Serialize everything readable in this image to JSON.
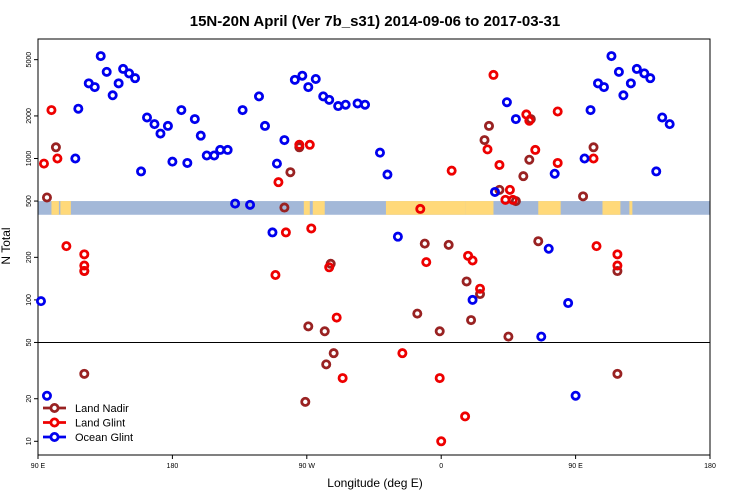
{
  "chart_data": {
    "type": "scatter",
    "title": "15N-20N April (Ver 7b_s31)   2014-09-06 to 2017-03-31",
    "xlabel": "Longitude (deg E)",
    "ylabel": "N Total",
    "y_scale": "log",
    "xlim": [
      90,
      540
    ],
    "ylim": [
      8,
      7000
    ],
    "x_ticks": [
      {
        "value": 90,
        "label": "90 E"
      },
      {
        "value": 180,
        "label": "180"
      },
      {
        "value": 270,
        "label": "90 W"
      },
      {
        "value": 360,
        "label": "0"
      },
      {
        "value": 450,
        "label": "90 E"
      },
      {
        "value": 540,
        "label": "180"
      }
    ],
    "y_ticks": [
      {
        "value": 10,
        "label": "10"
      },
      {
        "value": 20,
        "label": "20"
      },
      {
        "value": 50,
        "label": "50"
      },
      {
        "value": 100,
        "label": "100"
      },
      {
        "value": 200,
        "label": "200"
      },
      {
        "value": 500,
        "label": "500"
      },
      {
        "value": 1000,
        "label": "1000"
      },
      {
        "value": 2000,
        "label": "2000"
      },
      {
        "value": 5000,
        "label": "5000"
      }
    ],
    "reference_line_y": 50,
    "latitude_band": {
      "y_range": [
        400,
        500
      ],
      "ocean_color": "#a3b8d8",
      "land_color": "#ffd97a",
      "land_segments": [
        [
          99,
          104
        ],
        [
          105,
          112
        ],
        [
          268,
          272
        ],
        [
          274,
          282
        ],
        [
          323,
          376
        ],
        [
          376,
          395
        ],
        [
          425,
          440
        ],
        [
          468,
          480
        ],
        [
          486,
          488
        ]
      ]
    },
    "legend_position": "bottom-left",
    "series": [
      {
        "name": "Land Nadir",
        "color": "#992222",
        "points": [
          [
            96,
            530
          ],
          [
            102,
            1200
          ],
          [
            121,
            160
          ],
          [
            121,
            30
          ],
          [
            255,
            450
          ],
          [
            259,
            800
          ],
          [
            265,
            1200
          ],
          [
            269,
            19
          ],
          [
            271,
            65
          ],
          [
            282,
            60
          ],
          [
            283,
            35
          ],
          [
            286,
            180
          ],
          [
            288,
            42
          ],
          [
            344,
            80
          ],
          [
            349,
            250
          ],
          [
            359,
            60
          ],
          [
            365,
            245
          ],
          [
            377,
            135
          ],
          [
            380,
            72
          ],
          [
            386,
            110
          ],
          [
            389,
            1350
          ],
          [
            392,
            1700
          ],
          [
            399,
            600
          ],
          [
            405,
            55
          ],
          [
            410,
            500
          ],
          [
            415,
            750
          ],
          [
            419,
            980
          ],
          [
            420,
            1900
          ],
          [
            425,
            260
          ],
          [
            455,
            540
          ],
          [
            462,
            1200
          ],
          [
            478,
            160
          ],
          [
            478,
            30
          ]
        ]
      },
      {
        "name": "Land Glint",
        "color": "#ee0000",
        "points": [
          [
            94,
            920
          ],
          [
            99,
            2200
          ],
          [
            103,
            1000
          ],
          [
            109,
            240
          ],
          [
            121,
            210
          ],
          [
            121,
            175
          ],
          [
            121,
            160
          ],
          [
            249,
            150
          ],
          [
            251,
            680
          ],
          [
            256,
            300
          ],
          [
            265,
            1250
          ],
          [
            272,
            1250
          ],
          [
            273,
            320
          ],
          [
            285,
            170
          ],
          [
            290,
            75
          ],
          [
            294,
            28
          ],
          [
            334,
            42
          ],
          [
            346,
            440
          ],
          [
            350,
            185
          ],
          [
            359,
            28
          ],
          [
            360,
            10
          ],
          [
            367,
            820
          ],
          [
            376,
            15
          ],
          [
            378,
            205
          ],
          [
            381,
            190
          ],
          [
            386,
            120
          ],
          [
            391,
            1160
          ],
          [
            395,
            3900
          ],
          [
            399,
            900
          ],
          [
            403,
            510
          ],
          [
            406,
            600
          ],
          [
            408,
            510
          ],
          [
            417,
            2050
          ],
          [
            419,
            1850
          ],
          [
            423,
            1150
          ],
          [
            438,
            2150
          ],
          [
            438,
            930
          ],
          [
            462,
            1000
          ],
          [
            464,
            240
          ],
          [
            478,
            210
          ],
          [
            478,
            175
          ]
        ]
      },
      {
        "name": "Ocean Glint",
        "color": "#0000ee",
        "points": [
          [
            92,
            98
          ],
          [
            96,
            21
          ],
          [
            115,
            1000
          ],
          [
            117,
            2250
          ],
          [
            124,
            3400
          ],
          [
            128,
            3200
          ],
          [
            132,
            5300
          ],
          [
            136,
            4100
          ],
          [
            140,
            2800
          ],
          [
            144,
            3400
          ],
          [
            147,
            4300
          ],
          [
            151,
            4000
          ],
          [
            155,
            3700
          ],
          [
            159,
            810
          ],
          [
            163,
            1950
          ],
          [
            168,
            1750
          ],
          [
            172,
            1500
          ],
          [
            177,
            1700
          ],
          [
            180,
            950
          ],
          [
            186,
            2200
          ],
          [
            190,
            930
          ],
          [
            195,
            1900
          ],
          [
            199,
            1450
          ],
          [
            203,
            1050
          ],
          [
            208,
            1050
          ],
          [
            212,
            1150
          ],
          [
            217,
            1150
          ],
          [
            222,
            480
          ],
          [
            227,
            2200
          ],
          [
            232,
            470
          ],
          [
            238,
            2750
          ],
          [
            242,
            1700
          ],
          [
            247,
            300
          ],
          [
            250,
            920
          ],
          [
            255,
            1350
          ],
          [
            262,
            3600
          ],
          [
            267,
            3850
          ],
          [
            271,
            3200
          ],
          [
            276,
            3650
          ],
          [
            281,
            2750
          ],
          [
            285,
            2600
          ],
          [
            291,
            2350
          ],
          [
            296,
            2400
          ],
          [
            304,
            2450
          ],
          [
            309,
            2400
          ],
          [
            319,
            1100
          ],
          [
            324,
            770
          ],
          [
            331,
            280
          ],
          [
            381,
            100
          ],
          [
            396,
            580
          ],
          [
            404,
            2500
          ],
          [
            410,
            1900
          ],
          [
            427,
            55
          ],
          [
            432,
            230
          ],
          [
            436,
            780
          ],
          [
            445,
            95
          ],
          [
            450,
            21
          ],
          [
            456,
            1000
          ],
          [
            460,
            2200
          ],
          [
            465,
            3400
          ],
          [
            469,
            3200
          ],
          [
            474,
            5300
          ],
          [
            479,
            4100
          ],
          [
            482,
            2800
          ],
          [
            487,
            3400
          ],
          [
            491,
            4300
          ],
          [
            496,
            4000
          ],
          [
            500,
            3700
          ],
          [
            504,
            810
          ],
          [
            508,
            1950
          ],
          [
            513,
            1750
          ]
        ]
      }
    ]
  }
}
